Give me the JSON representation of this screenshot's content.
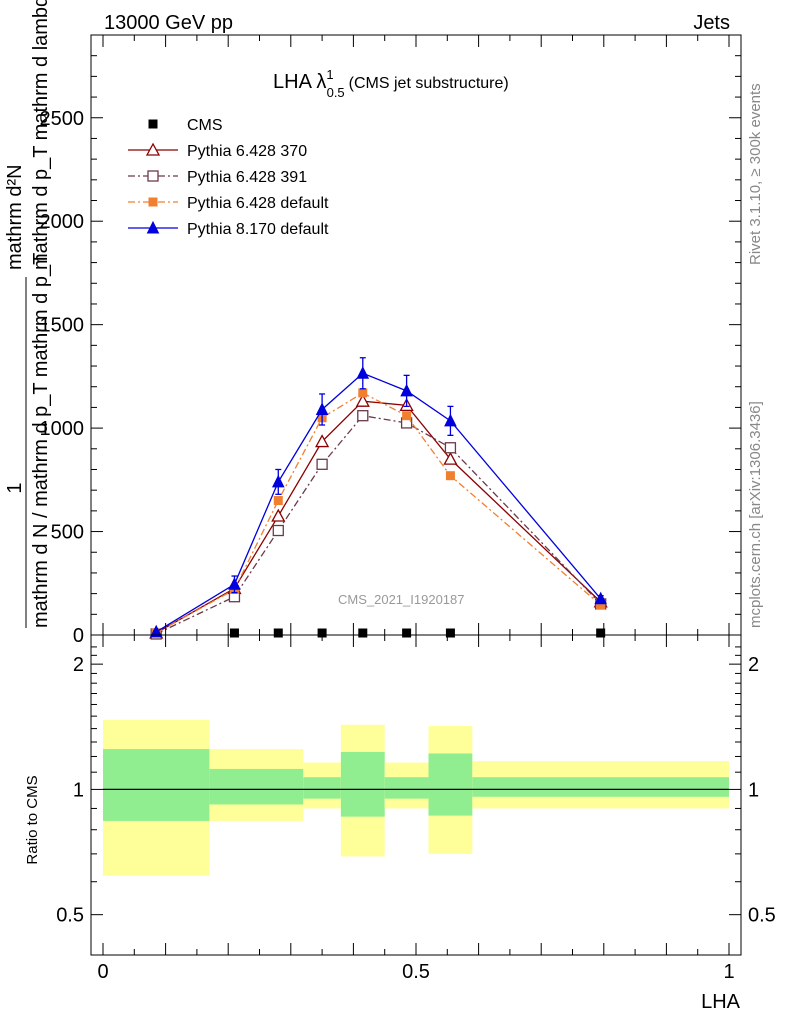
{
  "header": {
    "left": "13000 GeV pp",
    "right": "Jets"
  },
  "side_labels": {
    "top": "Rivet 3.1.10, ≥ 300k events",
    "bottom": "mcplots.cern.ch [arXiv:1306.3436]"
  },
  "watermark": "CMS_2021_I1920187",
  "chart_data": [
    {
      "type": "line",
      "title": "LHA λ",
      "title_sup": "1",
      "title_sub": "0.5",
      "title_suffix": "(CMS jet substructure)",
      "xlabel": "",
      "ylabel_numerator": "mathrm d²N",
      "ylabel_top": "mathrm d p_T mathrm d lambda",
      "ylabel_one": "1",
      "ylabel_bottom": "mathrm d N / mathrm d p_T mathrm d p_T",
      "xlim": [
        0,
        1
      ],
      "ylim": [
        0,
        2900
      ],
      "yticks": [
        0,
        500,
        1000,
        1500,
        2000,
        2500
      ],
      "ytick_labels": [
        "0",
        "500",
        "1000",
        "1500",
        "2000",
        "2500"
      ],
      "legend_position": "top-left",
      "series": [
        {
          "name": "CMS",
          "color": "#000000",
          "marker": "filled-square",
          "line": "none",
          "x": [
            0.21,
            0.28,
            0.35,
            0.415,
            0.485,
            0.555,
            0.795
          ],
          "y": [
            0,
            0,
            0,
            0,
            0,
            0,
            0
          ]
        },
        {
          "name": "Pythia 6.428 370",
          "color": "#8b0000",
          "marker": "open-triangle",
          "line": "solid",
          "x": [
            0.085,
            0.21,
            0.28,
            0.35,
            0.415,
            0.485,
            0.555,
            0.795
          ],
          "y": [
            10,
            225,
            575,
            935,
            1130,
            1110,
            850,
            160
          ]
        },
        {
          "name": "Pythia 6.428 391",
          "color": "#6b3a4a",
          "marker": "open-square",
          "line": "dashdot",
          "x": [
            0.085,
            0.21,
            0.28,
            0.35,
            0.415,
            0.485,
            0.555,
            0.795
          ],
          "y": [
            5,
            185,
            505,
            825,
            1060,
            1025,
            905,
            150
          ]
        },
        {
          "name": "Pythia 6.428 default",
          "color": "#f08030",
          "marker": "filled-square",
          "line": "dashdot",
          "x": [
            0.085,
            0.21,
            0.28,
            0.35,
            0.415,
            0.485,
            0.555,
            0.795
          ],
          "y": [
            10,
            220,
            650,
            1050,
            1170,
            1060,
            770,
            145
          ]
        },
        {
          "name": "Pythia 8.170 default",
          "color": "#0000dd",
          "marker": "filled-triangle",
          "line": "solid",
          "x": [
            0.085,
            0.21,
            0.28,
            0.35,
            0.415,
            0.485,
            0.555,
            0.795
          ],
          "y": [
            15,
            245,
            740,
            1090,
            1265,
            1180,
            1035,
            175
          ],
          "yerr": [
            5,
            40,
            60,
            75,
            75,
            75,
            70,
            15
          ]
        }
      ]
    },
    {
      "type": "area",
      "ylabel": "Ratio to CMS",
      "xlabel": "LHA",
      "xlim": [
        0,
        1
      ],
      "ylim": [
        0.4,
        2.35
      ],
      "yscale": "log",
      "yticks": [
        0.5,
        1,
        2
      ],
      "ytick_labels": [
        "0.5",
        "1",
        "2"
      ],
      "xticks": [
        0,
        0.5,
        1
      ],
      "xtick_labels": [
        "0",
        "0.5",
        "1"
      ],
      "reference_line": 1,
      "bands": [
        {
          "x0": 0.0,
          "x1": 0.17,
          "inner": [
            0.84,
            1.25
          ],
          "outer": [
            0.62,
            1.47
          ]
        },
        {
          "x0": 0.17,
          "x1": 0.32,
          "inner": [
            0.92,
            1.12
          ],
          "outer": [
            0.84,
            1.25
          ]
        },
        {
          "x0": 0.32,
          "x1": 0.38,
          "inner": [
            0.95,
            1.07
          ],
          "outer": [
            0.9,
            1.16
          ]
        },
        {
          "x0": 0.38,
          "x1": 0.45,
          "inner": [
            0.86,
            1.23
          ],
          "outer": [
            0.69,
            1.43
          ]
        },
        {
          "x0": 0.45,
          "x1": 0.52,
          "inner": [
            0.95,
            1.07
          ],
          "outer": [
            0.9,
            1.16
          ]
        },
        {
          "x0": 0.52,
          "x1": 0.59,
          "inner": [
            0.865,
            1.22
          ],
          "outer": [
            0.7,
            1.42
          ]
        },
        {
          "x0": 0.59,
          "x1": 1.0,
          "inner": [
            0.96,
            1.07
          ],
          "outer": [
            0.9,
            1.17
          ]
        }
      ],
      "band_colors": {
        "inner": "#90ee90",
        "outer": "#ffff99"
      }
    }
  ]
}
